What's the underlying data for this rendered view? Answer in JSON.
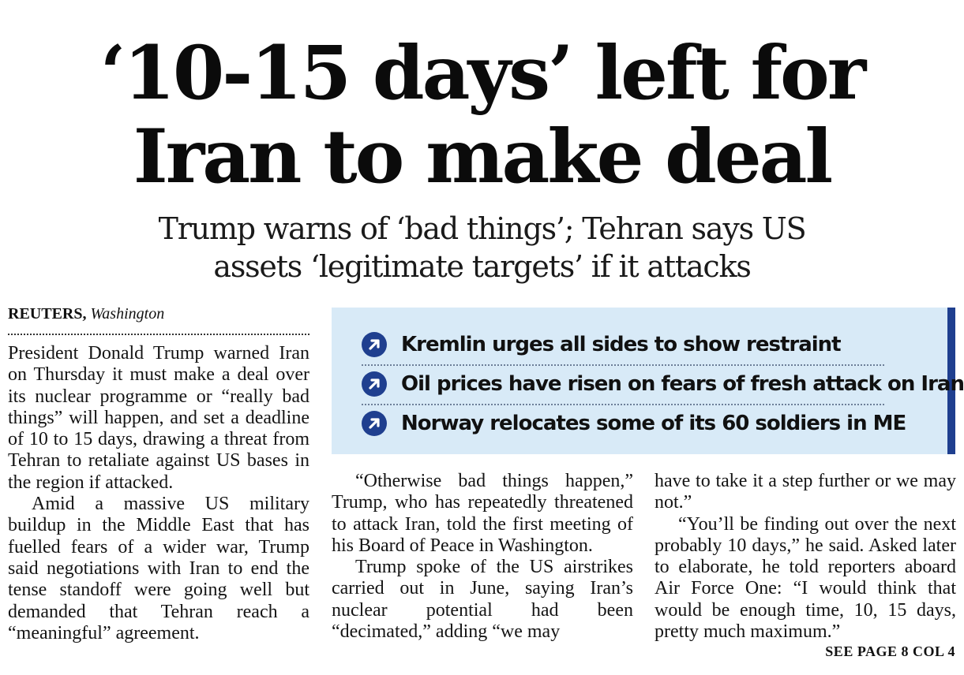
{
  "headline": {
    "line1": "‘10-15 days’ left for",
    "line2": "Iran to make deal"
  },
  "subheadline": {
    "line1": "Trump warns of ‘bad things’; Tehran says US",
    "line2": "assets ‘legitimate targets’ if it attacks"
  },
  "byline": {
    "agency": "REUTERS,",
    "location": "Washington"
  },
  "highlights": {
    "icon": "arrow-circle-icon",
    "accent_color": "#1f3f8f",
    "background_color": "#d8eaf7",
    "items": [
      "Kremlin urges all sides to show restraint",
      "Oil prices have risen on fears of fresh attack on Iran",
      "Norway relocates some of its 60 soldiers in ME"
    ]
  },
  "article": {
    "paragraphs": [
      "President Donald Trump warned Iran on Thursday it must make a deal over its nuclear programme or “really bad things” will happen, and set a deadline of 10 to 15 days, drawing a threat from Tehran to retaliate against US bases in the region if attacked.",
      "Amid a massive US military buildup in the Middle East that has fuelled fears of a wider war, Trump said negotiations with Iran to end the tense standoff were going well but demanded that Tehran reach a “meaningful” agreement.",
      "“Otherwise bad things happen,” Trump, who has repeatedly threatened to attack Iran, told the first meeting of his Board of Peace in Washington.",
      "Trump spoke of the US airstrikes carried out in June, saying Iran’s nuclear potential had been “decimated,” adding “we may",
      "have to take it a step further or we may not.”",
      "“You’ll be finding out over the next probably 10 days,” he said. Asked later to elaborate, he told reporters aboard Air Force One: “I would think that would be enough time, 10, 15 days, pretty much maximum.”"
    ]
  },
  "jump": {
    "label": "SEE PAGE 8 COL 4"
  }
}
